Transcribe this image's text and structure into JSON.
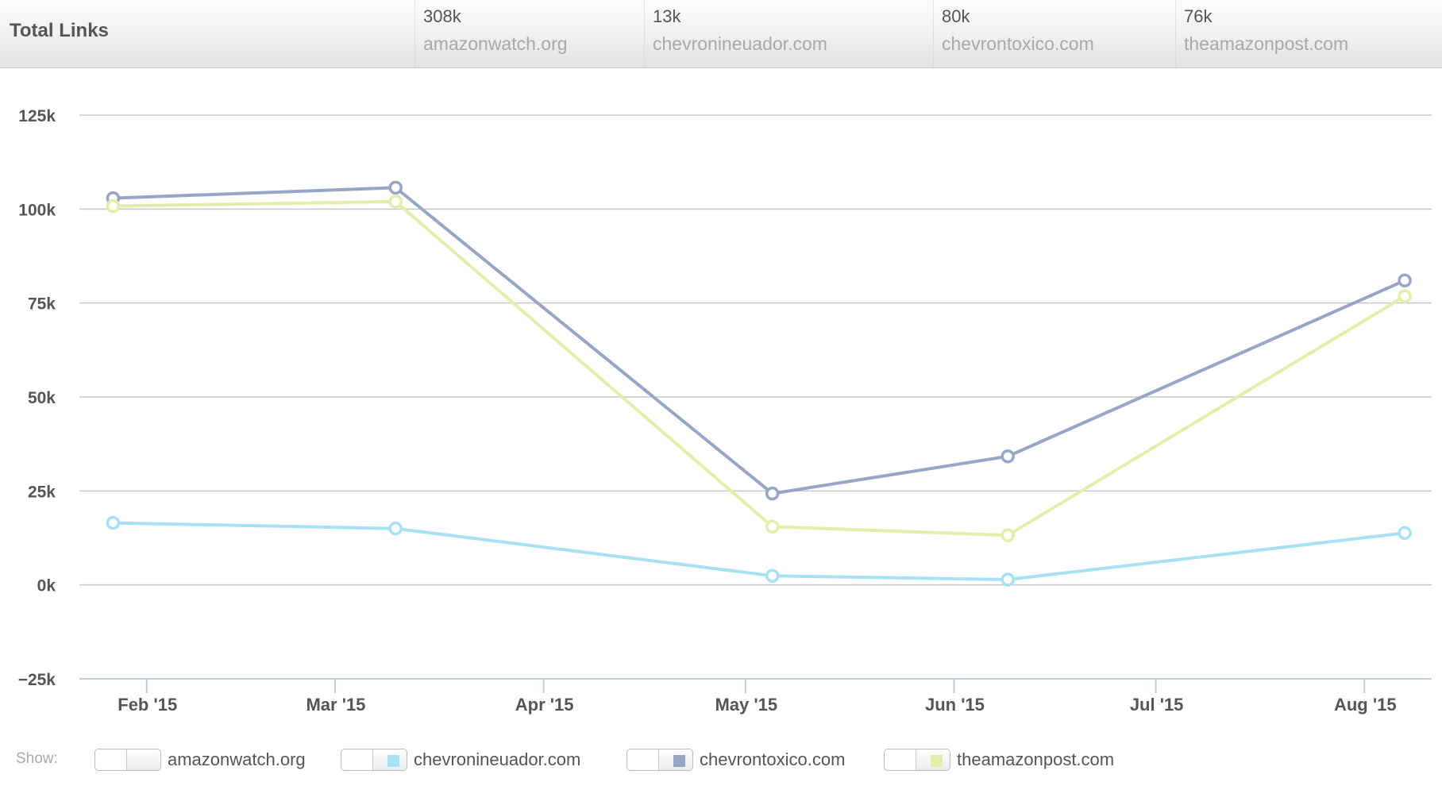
{
  "header": {
    "title": "Total Links",
    "stats": [
      {
        "value": "308k",
        "domain": "amazonwatch.org"
      },
      {
        "value": "13k",
        "domain": "chevronineuador.com"
      },
      {
        "value": "80k",
        "domain": "chevrontoxico.com"
      },
      {
        "value": "76k",
        "domain": "theamazonpost.com"
      }
    ]
  },
  "legend": {
    "show_label": "Show:",
    "items": [
      {
        "label": "amazonwatch.org",
        "color": null
      },
      {
        "label": "chevronineuador.com",
        "color": "#a8e0f4"
      },
      {
        "label": "chevrontoxico.com",
        "color": "#97a6c6"
      },
      {
        "label": "theamazonpost.com",
        "color": "#e3eeac"
      }
    ]
  },
  "chart_data": {
    "type": "line",
    "title": "",
    "xlabel": "",
    "ylabel": "",
    "ylim": [
      -25000,
      125000
    ],
    "yticks": [
      -25000,
      0,
      25000,
      50000,
      75000,
      100000,
      125000
    ],
    "ytick_labels": [
      "−25k",
      "0k",
      "25k",
      "50k",
      "75k",
      "100k",
      "125k"
    ],
    "xlim": [
      "2015-01-22",
      "2015-08-11"
    ],
    "x_ticks": [
      {
        "date": "2015-02-01",
        "label": "Feb '15"
      },
      {
        "date": "2015-03-01",
        "label": "Mar '15"
      },
      {
        "date": "2015-04-01",
        "label": "Apr '15"
      },
      {
        "date": "2015-05-01",
        "label": "May '15"
      },
      {
        "date": "2015-06-01",
        "label": "Jun '15"
      },
      {
        "date": "2015-07-01",
        "label": "Jul '15"
      },
      {
        "date": "2015-08-01",
        "label": "Aug '15"
      }
    ],
    "grid": true,
    "series": [
      {
        "name": "chevronineuador.com",
        "color": "#a8e0f4",
        "x": [
          "2015-01-27",
          "2015-03-10",
          "2015-05-05",
          "2015-06-09",
          "2015-08-07"
        ],
        "y": [
          16500,
          15000,
          2400,
          1400,
          13800
        ]
      },
      {
        "name": "chevrontoxico.com",
        "color": "#97a6c6",
        "x": [
          "2015-01-27",
          "2015-03-10",
          "2015-05-05",
          "2015-06-09",
          "2015-08-07"
        ],
        "y": [
          102900,
          105700,
          24300,
          34200,
          81000
        ]
      },
      {
        "name": "theamazonpost.com",
        "color": "#e3eeac",
        "x": [
          "2015-01-27",
          "2015-03-10",
          "2015-05-05",
          "2015-06-09",
          "2015-08-07"
        ],
        "y": [
          100800,
          102000,
          15500,
          13200,
          76800
        ]
      }
    ]
  }
}
